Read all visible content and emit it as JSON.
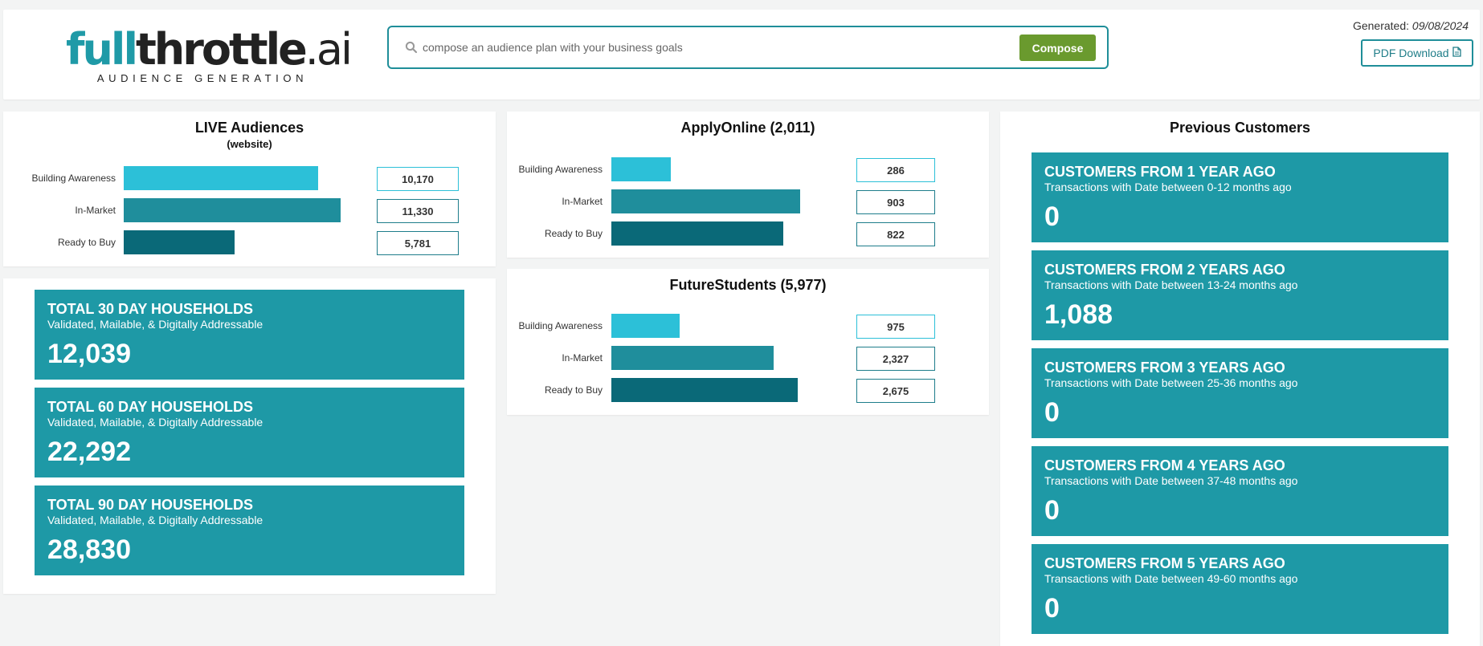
{
  "header": {
    "logo": {
      "full": "full",
      "throttle": "throttle",
      "ai": ".ai",
      "subtitle": "AUDIENCE GENERATION"
    },
    "search": {
      "placeholder": "compose an audience plan with your business goals",
      "value": ""
    },
    "compose_label": "Compose",
    "generated_label": "Generated:",
    "generated_date": "09/08/2024",
    "pdf_label": "PDF Download"
  },
  "live_audiences": {
    "title": "LIVE Audiences",
    "subtitle": "(website)",
    "rows": [
      {
        "label": "Building Awareness",
        "value": "10,170",
        "raw": 10170
      },
      {
        "label": "In-Market",
        "value": "11,330",
        "raw": 11330
      },
      {
        "label": "Ready to Buy",
        "value": "5,781",
        "raw": 5781
      }
    ]
  },
  "apply_online": {
    "title": "ApplyOnline (2,011)",
    "rows": [
      {
        "label": "Building Awareness",
        "value": "286",
        "raw": 286
      },
      {
        "label": "In-Market",
        "value": "903",
        "raw": 903
      },
      {
        "label": "Ready to Buy",
        "value": "822",
        "raw": 822
      }
    ]
  },
  "future_students": {
    "title": "FutureStudents (5,977)",
    "rows": [
      {
        "label": "Building Awareness",
        "value": "975",
        "raw": 975
      },
      {
        "label": "In-Market",
        "value": "2,327",
        "raw": 2327
      },
      {
        "label": "Ready to Buy",
        "value": "2,675",
        "raw": 2675
      }
    ]
  },
  "households": [
    {
      "title": "TOTAL 30 DAY HOUSEHOLDS",
      "subtitle": "Validated, Mailable, & Digitally Addressable",
      "value": "12,039"
    },
    {
      "title": "TOTAL 60 DAY HOUSEHOLDS",
      "subtitle": "Validated, Mailable, & Digitally Addressable",
      "value": "22,292"
    },
    {
      "title": "TOTAL 90 DAY HOUSEHOLDS",
      "subtitle": "Validated, Mailable, & Digitally Addressable",
      "value": "28,830"
    }
  ],
  "previous_customers": {
    "title": "Previous Customers",
    "tiles": [
      {
        "title": "CUSTOMERS FROM 1 YEAR AGO",
        "subtitle": "Transactions with Date between 0-12 months ago",
        "value": "0"
      },
      {
        "title": "CUSTOMERS FROM 2 YEARS AGO",
        "subtitle": "Transactions with Date between 13-24 months ago",
        "value": "1,088"
      },
      {
        "title": "CUSTOMERS FROM 3 YEARS AGO",
        "subtitle": "Transactions with Date between 25-36 months ago",
        "value": "0"
      },
      {
        "title": "CUSTOMERS FROM 4 YEARS AGO",
        "subtitle": "Transactions with Date between 37-48 months ago",
        "value": "0"
      },
      {
        "title": "CUSTOMERS FROM 5 YEARS AGO",
        "subtitle": "Transactions with Date between 49-60 months ago",
        "value": "0"
      }
    ]
  },
  "colors": {
    "building_awareness": "#2cc0d8",
    "in_market": "#1f8e9c",
    "ready_to_buy": "#0a6978",
    "tile": "#1e99a6",
    "compose": "#6a9a2e"
  }
}
